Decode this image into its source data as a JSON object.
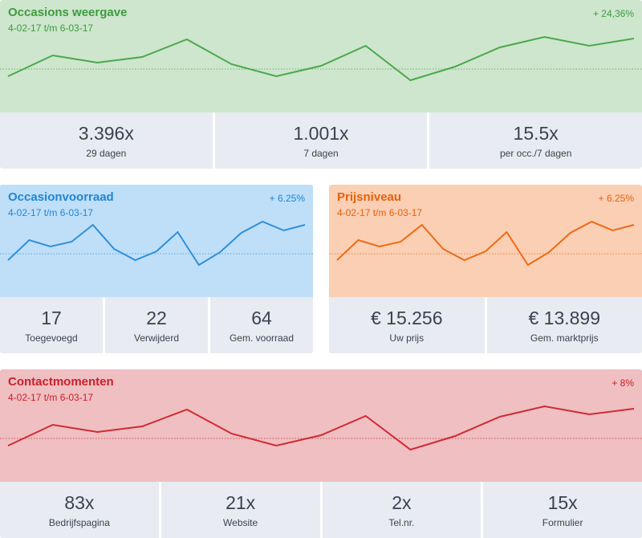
{
  "cards": {
    "weergave": {
      "title": "Occasions weergave",
      "period": "4-02-17 t/m 6-03-17",
      "change": "+ 24,36%",
      "colors": {
        "bg": "#cde6cd",
        "line": "#4ca84c",
        "title": "#3e9b3e"
      },
      "series": [
        95,
        69,
        78,
        71,
        49,
        80,
        95,
        82,
        57,
        100,
        83,
        59,
        46,
        57,
        48
      ],
      "baseline": 86,
      "stats": [
        {
          "value": "3.396x",
          "label": "29 dagen"
        },
        {
          "value": "1.001x",
          "label": "7 dagen"
        },
        {
          "value": "15.5x",
          "label": "per occ./7 dagen"
        }
      ]
    },
    "voorraad": {
      "title": "Occasionvoorraad",
      "period": "4-02-17 t/m 6-03-17",
      "change": "+ 6.25%",
      "colors": {
        "bg": "#bfdff8",
        "line": "#2f8fdc",
        "title": "#1f86d6"
      },
      "series": [
        94,
        69,
        77,
        71,
        50,
        80,
        94,
        83,
        59,
        100,
        84,
        60,
        46,
        57,
        50
      ],
      "baseline": 86,
      "stats": [
        {
          "value": "17",
          "label": "Toegevoegd"
        },
        {
          "value": "22",
          "label": "Verwijderd"
        },
        {
          "value": "64",
          "label": "Gem. voorraad"
        }
      ]
    },
    "prijs": {
      "title": "Prijsniveau",
      "period": "4-02-17 t/m 6-03-17",
      "change": "+ 6.25%",
      "colors": {
        "bg": "#fbcfb3",
        "line": "#ee6a17",
        "title": "#e8600e"
      },
      "series": [
        94,
        69,
        77,
        71,
        50,
        80,
        94,
        83,
        59,
        100,
        84,
        60,
        46,
        57,
        50
      ],
      "baseline": 86,
      "stats": [
        {
          "value": "€ 15.256",
          "label": "Uw prijs"
        },
        {
          "value": "€ 13.899",
          "label": "Gem. marktprijs"
        }
      ]
    },
    "contact": {
      "title": "Contactmomenten",
      "period": "4-02-17 t/m 6-03-17",
      "change": "+ 8%",
      "colors": {
        "bg": "#efbfc1",
        "line": "#d02a35",
        "title": "#c9202c"
      },
      "series": [
        95,
        69,
        78,
        71,
        50,
        80,
        95,
        82,
        58,
        100,
        83,
        59,
        46,
        56,
        49
      ],
      "baseline": 86,
      "stats": [
        {
          "value": "83x",
          "label": "Bedrijfspagina"
        },
        {
          "value": "21x",
          "label": "Website"
        },
        {
          "value": "2x",
          "label": "Tel.nr."
        },
        {
          "value": "15x",
          "label": "Formulier"
        }
      ]
    }
  }
}
